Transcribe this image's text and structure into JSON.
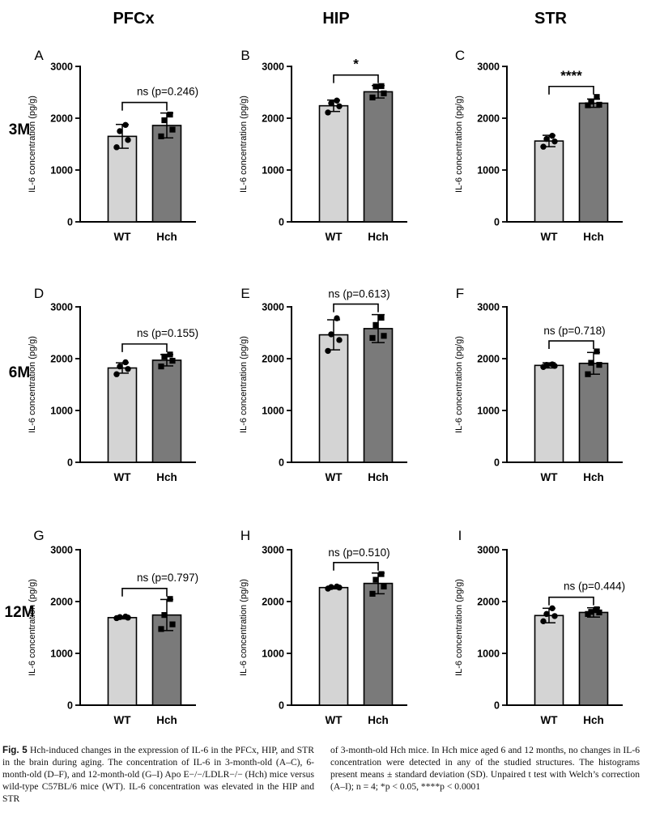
{
  "column_headers": [
    "PFCx",
    "HIP",
    "STR"
  ],
  "row_labels": [
    "3M",
    "6M",
    "12M"
  ],
  "chart_data": [
    {
      "type": "bar",
      "panel": "A",
      "region": "PFCx",
      "age": "3M",
      "categories": [
        "WT",
        "Hch"
      ],
      "values": [
        1650,
        1860
      ],
      "sd": [
        230,
        240
      ],
      "points": [
        [
          1440,
          1580,
          1750,
          1870
        ],
        [
          1650,
          1780,
          1960,
          2070
        ]
      ],
      "ylabel": "IL-6 concentration (pg/g)",
      "ylim": [
        0,
        3000
      ],
      "yticks": [
        0,
        1000,
        2000,
        3000
      ],
      "annotation": "ns  (p=0.246)",
      "annotation_style": "side"
    },
    {
      "type": "bar",
      "panel": "B",
      "region": "HIP",
      "age": "3M",
      "categories": [
        "WT",
        "Hch"
      ],
      "values": [
        2240,
        2510
      ],
      "sd": [
        110,
        120
      ],
      "points": [
        [
          2110,
          2230,
          2290,
          2340
        ],
        [
          2400,
          2480,
          2610,
          2620
        ]
      ],
      "ylabel": "IL-6 concentration (pg/g)",
      "ylim": [
        0,
        3000
      ],
      "yticks": [
        0,
        1000,
        2000,
        3000
      ],
      "annotation": "*",
      "annotation_style": "above"
    },
    {
      "type": "bar",
      "panel": "C",
      "region": "STR",
      "age": "3M",
      "categories": [
        "WT",
        "Hch"
      ],
      "values": [
        1560,
        2290
      ],
      "sd": [
        110,
        80
      ],
      "points": [
        [
          1450,
          1550,
          1600,
          1660
        ],
        [
          2250,
          2260,
          2320,
          2410
        ]
      ],
      "ylabel": "IL-6 concentration (pg/g)",
      "ylim": [
        0,
        3000
      ],
      "yticks": [
        0,
        1000,
        2000,
        3000
      ],
      "annotation": "****",
      "annotation_style": "above"
    },
    {
      "type": "bar",
      "panel": "D",
      "region": "PFCx",
      "age": "6M",
      "categories": [
        "WT",
        "Hch"
      ],
      "values": [
        1820,
        1970
      ],
      "sd": [
        100,
        110
      ],
      "points": [
        [
          1700,
          1800,
          1850,
          1930
        ],
        [
          1850,
          1960,
          2040,
          2080
        ]
      ],
      "ylabel": "IL-6 concentration (pg/g)",
      "ylim": [
        0,
        3000
      ],
      "yticks": [
        0,
        1000,
        2000,
        3000
      ],
      "annotation": "ns  (p=0.155)",
      "annotation_style": "side"
    },
    {
      "type": "bar",
      "panel": "E",
      "region": "HIP",
      "age": "6M",
      "categories": [
        "WT",
        "Hch"
      ],
      "values": [
        2460,
        2580
      ],
      "sd": [
        290,
        270
      ],
      "points": [
        [
          2150,
          2360,
          2470,
          2780
        ],
        [
          2400,
          2440,
          2650,
          2790
        ]
      ],
      "ylabel": "IL-6 concentration (pg/g)",
      "ylim": [
        0,
        3000
      ],
      "yticks": [
        0,
        1000,
        2000,
        3000
      ],
      "annotation": "ns (p=0.613)",
      "annotation_style": "above"
    },
    {
      "type": "bar",
      "panel": "F",
      "region": "STR",
      "age": "6M",
      "categories": [
        "WT",
        "Hch"
      ],
      "values": [
        1870,
        1910
      ],
      "sd": [
        50,
        210
      ],
      "points": [
        [
          1840,
          1860,
          1880,
          1890
        ],
        [
          1700,
          1880,
          1920,
          2140
        ]
      ],
      "ylabel": "IL-6 concentration (pg/g)",
      "ylim": [
        0,
        3000
      ],
      "yticks": [
        0,
        1000,
        2000,
        3000
      ],
      "annotation": "ns (p=0.718)",
      "annotation_style": "above"
    },
    {
      "type": "bar",
      "panel": "G",
      "region": "PFCx",
      "age": "12M",
      "categories": [
        "WT",
        "Hch"
      ],
      "values": [
        1690,
        1740
      ],
      "sd": [
        25,
        300
      ],
      "points": [
        [
          1680,
          1690,
          1700,
          1710
        ],
        [
          1470,
          1560,
          1740,
          2050
        ]
      ],
      "ylabel": "IL-6 concentration (pg/g)",
      "ylim": [
        0,
        3000
      ],
      "yticks": [
        0,
        1000,
        2000,
        3000
      ],
      "annotation": "ns  (p=0.797)",
      "annotation_style": "side"
    },
    {
      "type": "bar",
      "panel": "H",
      "region": "HIP",
      "age": "12M",
      "categories": [
        "WT",
        "Hch"
      ],
      "values": [
        2270,
        2350
      ],
      "sd": [
        25,
        200
      ],
      "points": [
        [
          2250,
          2270,
          2280,
          2290
        ],
        [
          2150,
          2290,
          2420,
          2530
        ]
      ],
      "ylabel": "IL-6 concentration (pg/g)",
      "ylim": [
        0,
        3000
      ],
      "yticks": [
        0,
        1000,
        2000,
        3000
      ],
      "annotation": "ns (p=0.510)",
      "annotation_style": "above"
    },
    {
      "type": "bar",
      "panel": "I",
      "region": "STR",
      "age": "12M",
      "categories": [
        "WT",
        "Hch"
      ],
      "values": [
        1730,
        1790
      ],
      "sd": [
        140,
        90
      ],
      "points": [
        [
          1620,
          1720,
          1760,
          1870
        ],
        [
          1760,
          1790,
          1800,
          1850
        ]
      ],
      "ylabel": "IL-6 concentration (pg/g)",
      "ylim": [
        0,
        3000
      ],
      "yticks": [
        0,
        1000,
        2000,
        3000
      ],
      "annotation": "ns  (p=0.444)",
      "annotation_style": "side"
    }
  ],
  "colors": {
    "wt_bar": "#d4d4d4",
    "hch_bar": "#7a7a7a",
    "axis": "#000000"
  },
  "caption": {
    "fig_label": "Fig. 5",
    "left": " Hch-induced changes in the expression of IL-6 in the PFCx, HIP, and STR in the brain during aging. The concentration of IL-6 in 3-month-old (A–C), 6-month-old (D–F), and 12-month-old (G–I) Apo E−/−/LDLR−/− (Hch) mice versus wild-type C57BL/6 mice (WT). IL-6 concentration was elevated in the HIP and STR",
    "right": "of 3-month-old Hch mice. In Hch mice aged 6 and 12 months, no changes in IL-6 concentration were detected in any of the studied structures. The histograms present means ± standard deviation (SD). Unpaired t test with Welch’s correction (A–I); n = 4; *p < 0.05, ****p < 0.0001"
  }
}
